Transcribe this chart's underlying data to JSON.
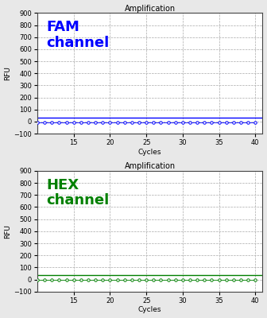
{
  "title": "Amplification",
  "xlabel": "Cycles",
  "ylabel": "RFU",
  "xlim": [
    10,
    41
  ],
  "ylim": [
    -100,
    900
  ],
  "yticks": [
    -100,
    0,
    100,
    200,
    300,
    400,
    500,
    600,
    700,
    800,
    900
  ],
  "xticks": [
    15,
    20,
    25,
    30,
    35,
    40
  ],
  "cycles_start": 10,
  "cycles_end": 40,
  "fam_label": "FAM\nchannel",
  "fam_color": "#0000FF",
  "fam_line_y": 30,
  "fam_data_y": -5,
  "hex_label": "HEX\nchannel",
  "hex_color": "#008000",
  "hex_line_y": 35,
  "hex_data_y": -5,
  "bg_color": "#e8e8e8",
  "panel_bg": "#ffffff",
  "grid_color": "#aaaaaa",
  "title_fontsize": 7,
  "label_fontsize": 6.5,
  "tick_fontsize": 6,
  "channel_fontsize": 13
}
